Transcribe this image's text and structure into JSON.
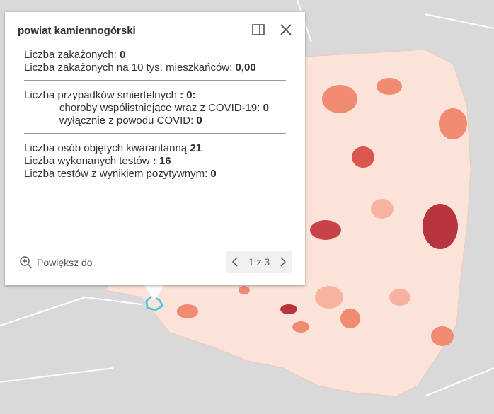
{
  "popup": {
    "title": "powiat kamiennogórski",
    "sections": [
      [
        {
          "label": "Liczba zakażonych:",
          "value": "0"
        },
        {
          "label": "Liczba zakażonych na 10 tys. mieszkańców:",
          "value": "0,00"
        }
      ],
      [
        {
          "label": "Liczba przypadków śmiertelnych",
          "value": ": 0:"
        },
        {
          "label": "choroby współistniejące wraz z COVID-19:",
          "value": "0"
        },
        {
          "label": "wyłącznie z powodu COVID:",
          "value": "0"
        }
      ],
      [
        {
          "label": "Liczba osób objętych kwarantanną",
          "value": "21"
        },
        {
          "label": "Liczba wykonanych testów",
          "value": ": 16"
        },
        {
          "label": "Liczba testów z wynikiem pozytywnym:",
          "value": "0"
        }
      ]
    ],
    "zoom": "Powiększ do",
    "pager": "1 z 3"
  }
}
